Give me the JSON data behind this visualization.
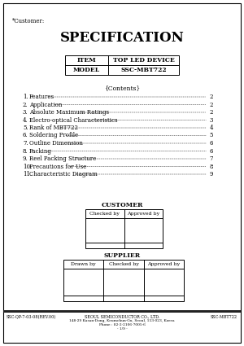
{
  "customer_label": "*Customer:",
  "title": "SPECIFICATION",
  "item_label": "ITEM",
  "item_value": "TOP LED DEVICE",
  "model_label": "MODEL",
  "model_value": "SSC-MBT722",
  "contents_header": "{Contents}",
  "contents": [
    [
      "1.",
      "Features",
      "2"
    ],
    [
      "2.",
      "Application",
      "2"
    ],
    [
      "3.",
      "Absolute Maximum Ratings",
      "2"
    ],
    [
      "4.",
      "Electro-optical Characteristics",
      "3"
    ],
    [
      "5.",
      "Rank of MBT722",
      "4"
    ],
    [
      "6.",
      "Soldering Profile",
      "5"
    ],
    [
      "7.",
      "Outline Dimension",
      "6"
    ],
    [
      "8.",
      "Packing",
      "6"
    ],
    [
      "9.",
      "Reel Packing Structure",
      "7"
    ],
    [
      "10.",
      "Precautions for Use",
      "8"
    ],
    [
      "11.",
      "Characteristic Diagram",
      "9"
    ]
  ],
  "customer_section": "CUSTOMER",
  "customer_cols": [
    "Checked by",
    "Approved by"
  ],
  "supplier_section": "SUPPLIER",
  "supplier_cols": [
    "Drawn by",
    "Checked by",
    "Approved by"
  ],
  "footer_left": "SSC-QP-7-03-08(REV.00)",
  "footer_center_line1": "SEOUL SEMICONDUCTOR CO., LTD.",
  "footer_center_line2": "148-29 Kasan-Dong, Keumchun-Gu, Seoul, 153-023, Korea",
  "footer_center_line3": "Phone : 82-2-2106-7005-6",
  "footer_center_line4": "- 1/9 -",
  "footer_right": "SSC-MBT722",
  "bg_color": "#ffffff",
  "border_color": "#000000",
  "text_color": "#000000",
  "footer_bar_color": "#222222"
}
